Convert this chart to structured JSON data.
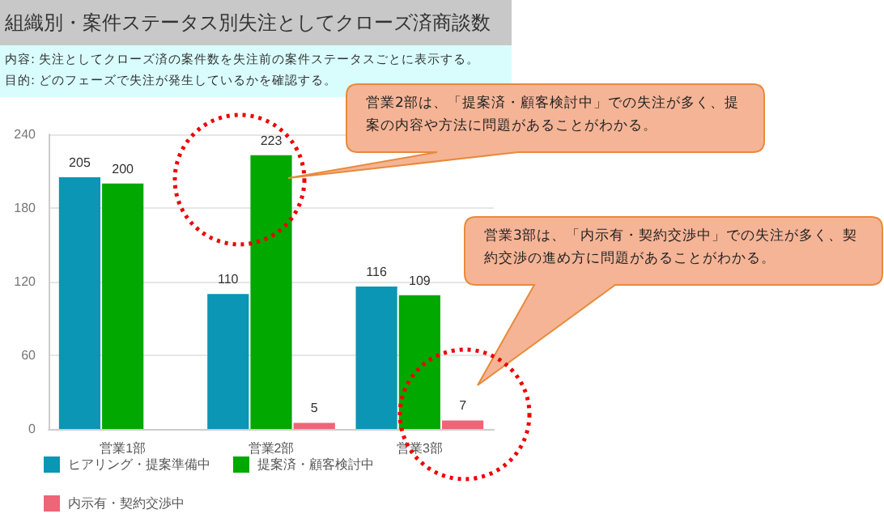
{
  "chart_data": {
    "type": "bar",
    "title": "組織別・案件ステータス別失注としてクローズ済商談数",
    "subtitle": "内容: 失注としてクローズ済の案件数を失注前の案件ステータスごとに表示する。",
    "categories": [
      "営業1部",
      "営業2部",
      "営業3部"
    ],
    "series": [
      {
        "name": "ヒアリング・提案準備中",
        "color": "#0a96b4",
        "values": [
          205,
          110,
          116
        ]
      },
      {
        "name": "提案済・顧客検討中",
        "color": "#00a800",
        "values": [
          200,
          223,
          109
        ]
      },
      {
        "name": "内示有・契約交渉中",
        "color": "#f06478",
        "values": [
          null,
          5,
          7
        ]
      }
    ],
    "ylim": [
      0,
      240
    ],
    "yticks": [
      0,
      60,
      120,
      180,
      240
    ],
    "grid": "y",
    "legend": "bottom left",
    "data_labels": true,
    "annotations": [
      "目的: どのフェーズで失注が発生しているかを確認する。",
      "営業2部は、「提案済・顧客検討中」での失注が多く、提案の内容や方法に問題があることがわかる。",
      "営業3部は、「内示有・契約交渉中」での失注が多く、契約交渉の進め方に問題があることがわかる。"
    ]
  }
}
